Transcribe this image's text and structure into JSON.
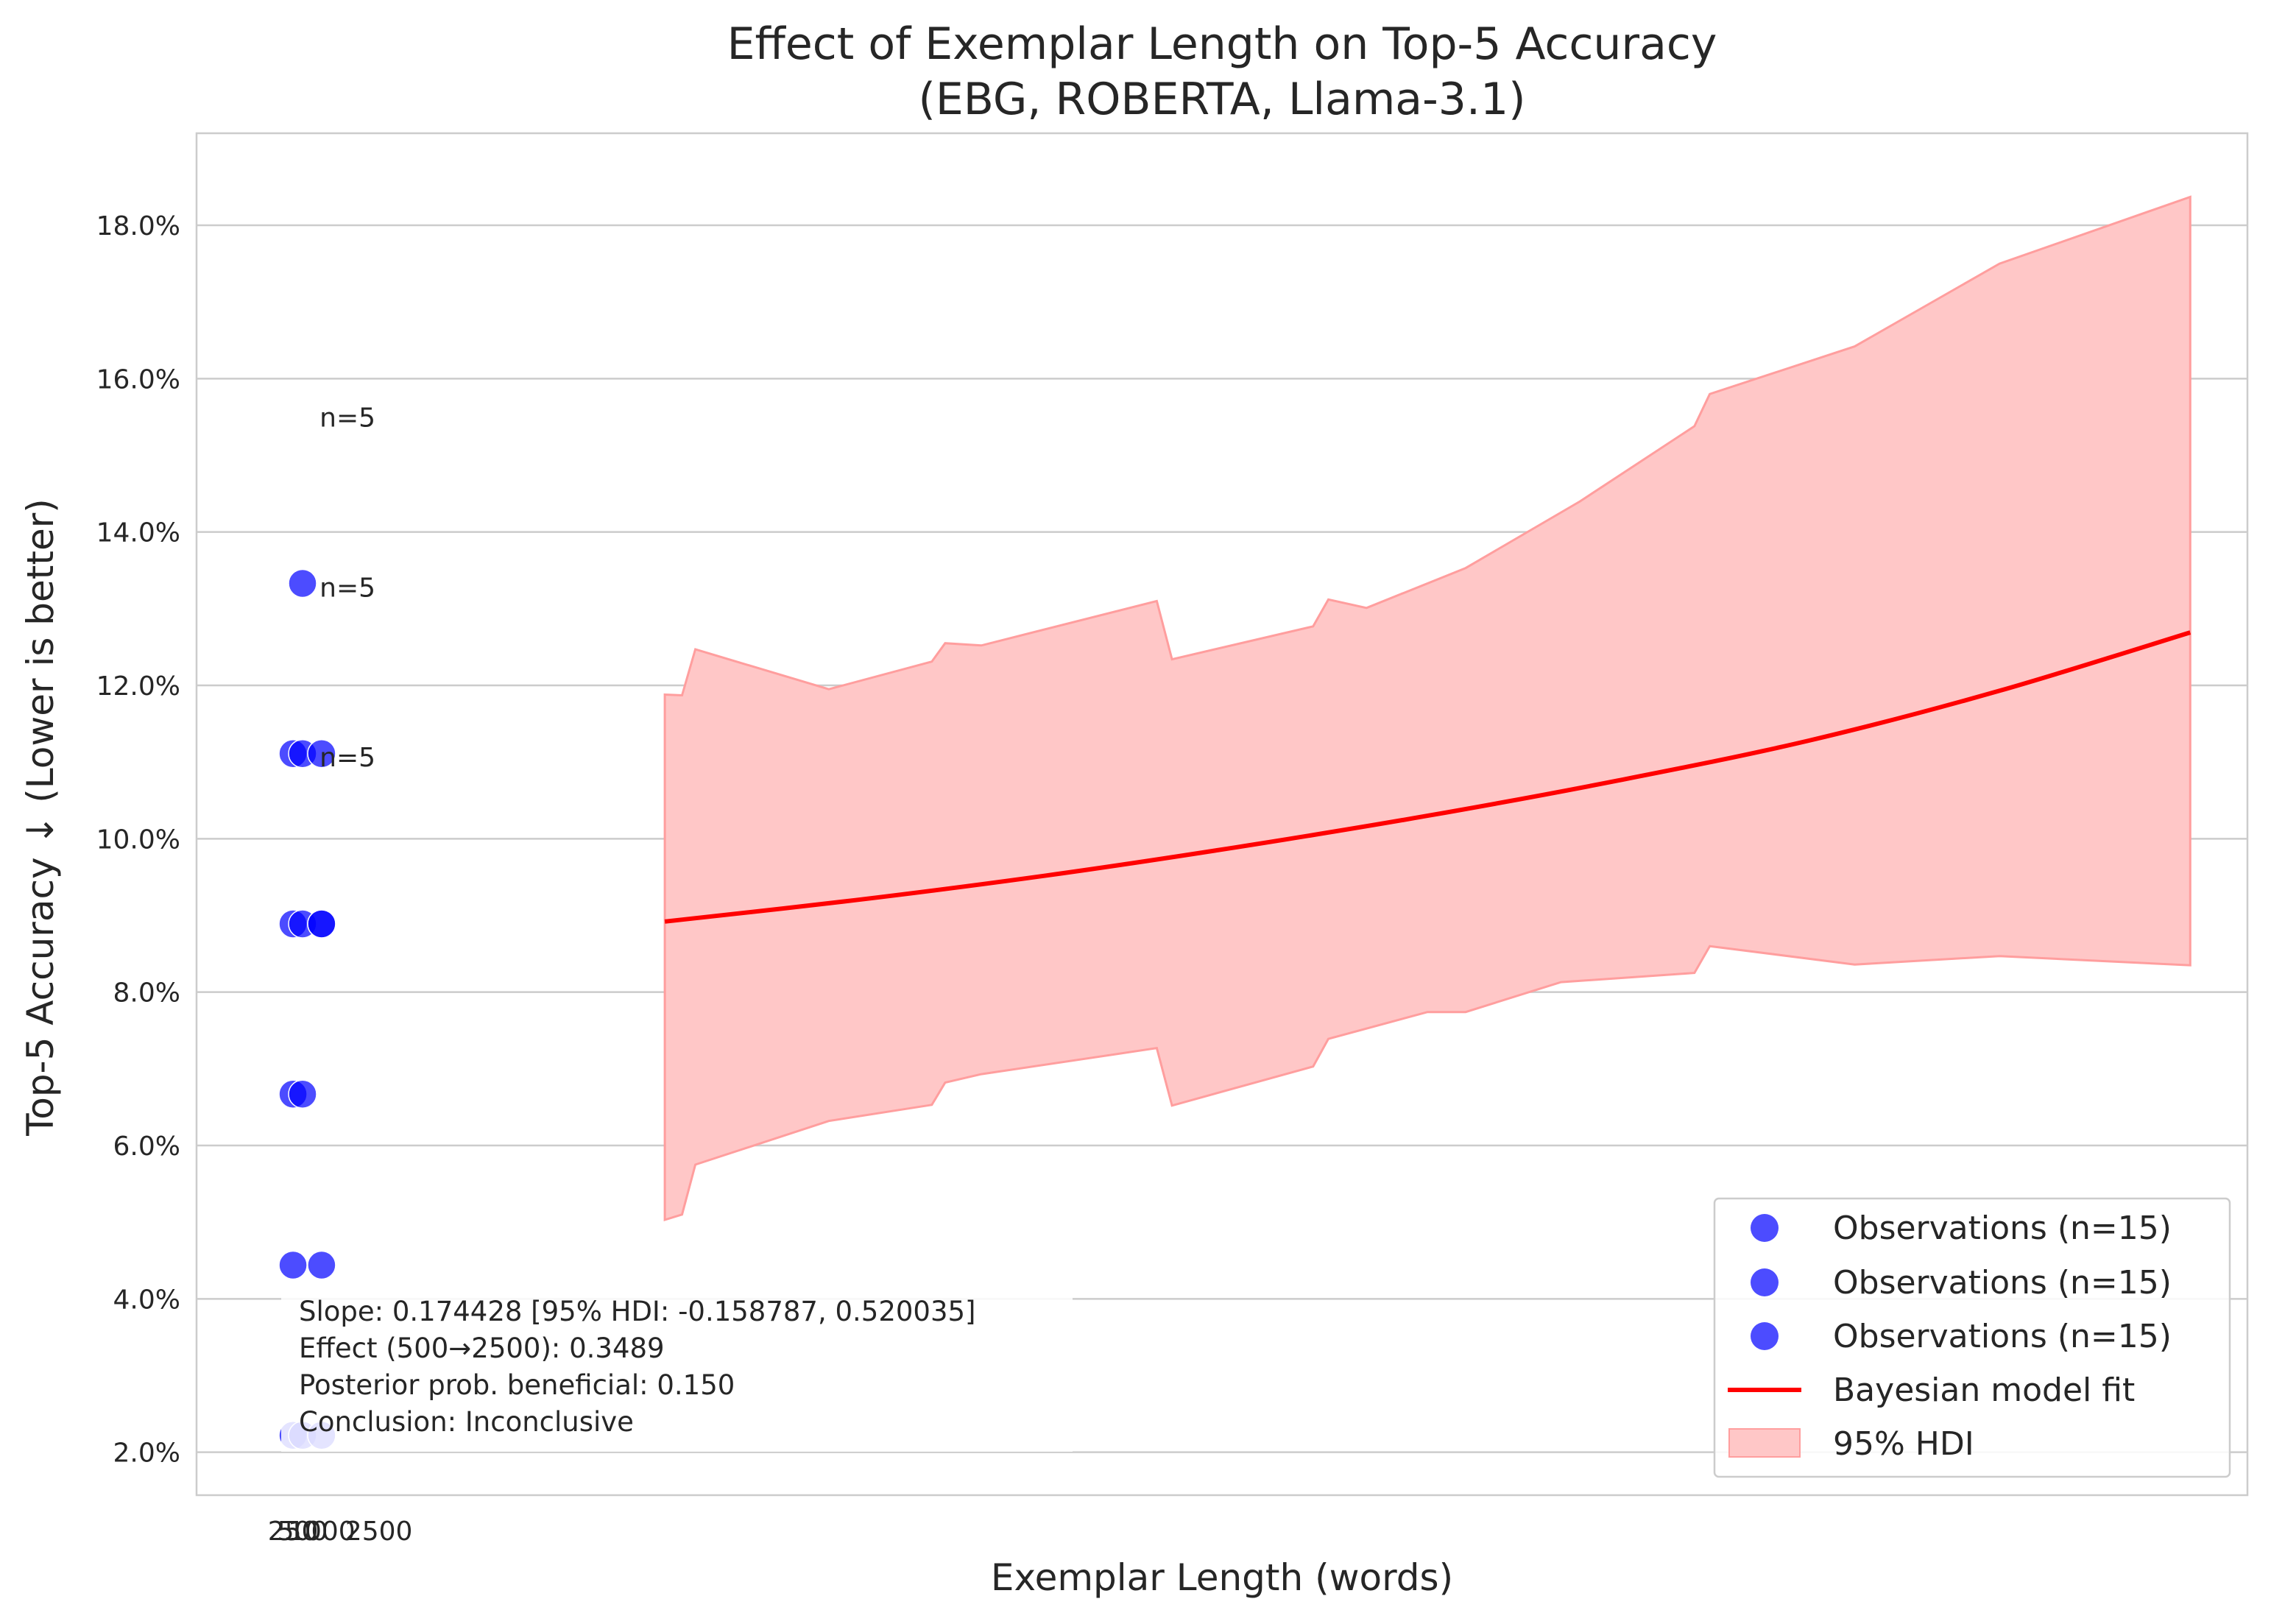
{
  "chart_data": {
    "type": "scatter",
    "title": "Effect of Exemplar Length on Top-5 Accuracy",
    "subtitle": "(EBG, ROBERTA, Llama-3.1)",
    "xlabel": "Exemplar Length (words)",
    "ylabel": "Top-5 Accuracy ↓ (Lower is better)",
    "xlim": [
      -2280,
      51500
    ],
    "ylim": [
      1.44,
      19.2
    ],
    "x_tick_labels": [
      {
        "label": "250",
        "x": 250
      },
      {
        "label": "500",
        "x": 500
      },
      {
        "label": "1000",
        "x": 1000
      },
      {
        "label": "2500",
        "x": 2500
      }
    ],
    "y_ticks": [
      2,
      4,
      6,
      8,
      10,
      12,
      14,
      16,
      18
    ],
    "y_tick_labels": [
      "2.0%",
      "4.0%",
      "6.0%",
      "8.0%",
      "10.0%",
      "12.0%",
      "14.0%",
      "16.0%",
      "18.0%"
    ],
    "grid": "horizontal",
    "legend_position": "bottom-right",
    "point_color": "#0000ff",
    "fit_color": "#ff0000",
    "band_color": "#ffc7c7",
    "series": [
      {
        "name": "Observations (n=15)",
        "kind": "scatter",
        "points": [
          [
            250,
            2.22
          ],
          [
            250,
            8.89
          ],
          [
            250,
            11.11
          ],
          [
            250,
            4.44
          ],
          [
            250,
            6.67
          ]
        ]
      },
      {
        "name": "Observations (n=15)",
        "kind": "scatter",
        "points": [
          [
            500,
            2.22
          ],
          [
            500,
            8.89
          ],
          [
            500,
            11.11
          ],
          [
            500,
            13.33
          ],
          [
            500,
            6.67
          ]
        ]
      },
      {
        "name": "Observations (n=15)",
        "kind": "scatter",
        "points": [
          [
            1000,
            2.22
          ],
          [
            1000,
            8.89
          ],
          [
            1000,
            11.11
          ],
          [
            1000,
            4.44
          ],
          [
            1000,
            8.89
          ]
        ]
      },
      {
        "name": "Bayesian model fit",
        "kind": "line",
        "x": [
          10000,
          15000,
          20000,
          25000,
          30000,
          35000,
          40000,
          45000,
          50000
        ],
        "y": [
          8.92,
          9.2,
          9.52,
          9.89,
          10.3,
          10.76,
          11.28,
          11.93,
          12.69
        ]
      },
      {
        "name": "95% HDI",
        "kind": "band",
        "upper": [
          [
            10000,
            11.88
          ],
          [
            10450,
            11.87
          ],
          [
            10800,
            12.47
          ],
          [
            14300,
            11.95
          ],
          [
            17000,
            12.31
          ],
          [
            17350,
            12.55
          ],
          [
            18300,
            12.52
          ],
          [
            22900,
            13.1
          ],
          [
            23300,
            12.34
          ],
          [
            27000,
            12.77
          ],
          [
            27400,
            13.12
          ],
          [
            28400,
            13.01
          ],
          [
            31000,
            13.53
          ],
          [
            34000,
            14.4
          ],
          [
            37000,
            15.38
          ],
          [
            37400,
            15.8
          ],
          [
            41200,
            16.42
          ],
          [
            45000,
            17.5
          ],
          [
            50000,
            18.37
          ]
        ],
        "lower": [
          [
            10000,
            5.03
          ],
          [
            10450,
            5.1
          ],
          [
            10800,
            5.75
          ],
          [
            14300,
            6.32
          ],
          [
            17000,
            6.53
          ],
          [
            17350,
            6.82
          ],
          [
            18300,
            6.93
          ],
          [
            22900,
            7.27
          ],
          [
            23300,
            6.52
          ],
          [
            27000,
            7.03
          ],
          [
            27400,
            7.39
          ],
          [
            30000,
            7.74
          ],
          [
            31000,
            7.74
          ],
          [
            33500,
            8.13
          ],
          [
            37000,
            8.25
          ],
          [
            37400,
            8.6
          ],
          [
            41200,
            8.36
          ],
          [
            45000,
            8.47
          ],
          [
            50000,
            8.35
          ]
        ]
      }
    ],
    "annotations": {
      "n_labels": [
        {
          "text": "n=5",
          "x": 0,
          "y": 15.5
        },
        {
          "text": "n=5",
          "x": 0,
          "y": 13.28
        },
        {
          "text": "n=5",
          "x": 0,
          "y": 11.07
        }
      ],
      "stats_lines": [
        "Slope: 0.174428 [95% HDI: -0.158787, 0.520035]",
        "Effect (500→2500): 0.3489",
        "Posterior prob. beneficial: 0.150",
        "Conclusion: Inconclusive"
      ]
    }
  }
}
